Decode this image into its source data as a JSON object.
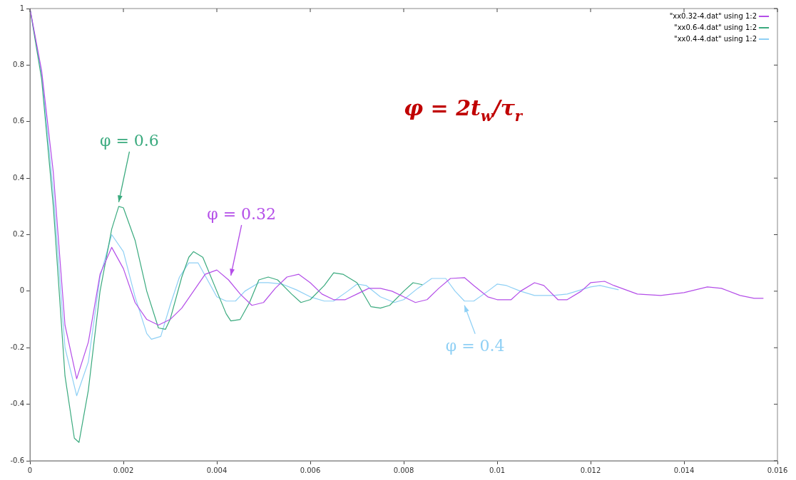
{
  "chart_data": {
    "type": "line",
    "xlim": [
      0,
      0.016
    ],
    "xticks": [
      0,
      0.002,
      0.004,
      0.006,
      0.008,
      0.01,
      0.012,
      0.014,
      0.016
    ],
    "ylim": [
      -0.6,
      1
    ],
    "yticks": [
      -0.6,
      -0.4,
      -0.2,
      0,
      0.2,
      0.4,
      0.6,
      0.8,
      1
    ],
    "grid": false,
    "legend": "top right",
    "marker": "none",
    "line_style": "solid",
    "series": [
      {
        "name": "\"xx0.32-4.dat\" using 1:2",
        "color": "#b44ee8",
        "x": [
          0,
          0.00025,
          0.0005,
          0.00075,
          0.001,
          0.00125,
          0.0015,
          0.00175,
          0.002,
          0.00225,
          0.0025,
          0.00275,
          0.003,
          0.00325,
          0.0035,
          0.00375,
          0.004,
          0.00425,
          0.0045,
          0.00475,
          0.005,
          0.00525,
          0.0055,
          0.00575,
          0.006,
          0.00625,
          0.0065,
          0.00675,
          0.007,
          0.00725,
          0.0075,
          0.00775,
          0.008,
          0.00825,
          0.0085,
          0.00875,
          0.009,
          0.0093,
          0.0095,
          0.0098,
          0.01,
          0.0103,
          0.0105,
          0.0108,
          0.011,
          0.0113,
          0.0115,
          0.0118,
          0.012,
          0.0123,
          0.0125,
          0.013,
          0.0135,
          0.014,
          0.0145,
          0.0148,
          0.0152,
          0.0155,
          0.0157
        ],
        "values": [
          1,
          0.78,
          0.42,
          -0.12,
          -0.31,
          -0.18,
          0.06,
          0.155,
          0.08,
          -0.04,
          -0.1,
          -0.12,
          -0.1,
          -0.06,
          0,
          0.06,
          0.075,
          0.04,
          -0.01,
          -0.05,
          -0.04,
          0.01,
          0.05,
          0.06,
          0.03,
          -0.01,
          -0.03,
          -0.03,
          -0.01,
          0.01,
          0.01,
          0,
          -0.02,
          -0.04,
          -0.03,
          0.01,
          0.045,
          0.048,
          0.02,
          -0.02,
          -0.03,
          -0.03,
          0,
          0.03,
          0.02,
          -0.03,
          -0.03,
          0,
          0.03,
          0.035,
          0.02,
          -0.01,
          -0.015,
          -0.005,
          0.015,
          0.01,
          -0.015,
          -0.025,
          -0.025
        ]
      },
      {
        "name": "\"xx0.6-4.dat\" using 1:2",
        "color": "#3aaa7e",
        "x": [
          0,
          0.00025,
          0.0005,
          0.00075,
          0.00095,
          0.00105,
          0.00125,
          0.0015,
          0.00175,
          0.0019,
          0.002,
          0.00225,
          0.0025,
          0.00275,
          0.0029,
          0.003,
          0.00325,
          0.0034,
          0.0035,
          0.0037,
          0.004,
          0.0042,
          0.0043,
          0.0045,
          0.0047,
          0.0049,
          0.0051,
          0.0053,
          0.0056,
          0.0058,
          0.006,
          0.0063,
          0.0065,
          0.0067,
          0.007,
          0.0073,
          0.0075,
          0.0077,
          0.008,
          0.0082,
          0.0084
        ],
        "values": [
          1,
          0.75,
          0.3,
          -0.3,
          -0.52,
          -0.535,
          -0.35,
          0,
          0.22,
          0.3,
          0.295,
          0.18,
          0,
          -0.13,
          -0.135,
          -0.1,
          0.05,
          0.12,
          0.14,
          0.12,
          0,
          -0.08,
          -0.105,
          -0.1,
          -0.04,
          0.04,
          0.05,
          0.04,
          -0.01,
          -0.04,
          -0.03,
          0.02,
          0.065,
          0.06,
          0.03,
          -0.055,
          -0.06,
          -0.05,
          0,
          0.03,
          0.023
        ]
      },
      {
        "name": "\"xx0.4-4.dat\" using 1:2",
        "color": "#8fd0f5",
        "x": [
          0,
          0.00025,
          0.0005,
          0.00075,
          0.001,
          0.00125,
          0.0015,
          0.00175,
          0.002,
          0.00225,
          0.0025,
          0.0026,
          0.0028,
          0.003,
          0.0032,
          0.0034,
          0.0036,
          0.0038,
          0.004,
          0.0042,
          0.0044,
          0.0046,
          0.0049,
          0.0051,
          0.0054,
          0.0057,
          0.006,
          0.0063,
          0.0065,
          0.0068,
          0.007,
          0.0072,
          0.0075,
          0.0078,
          0.008,
          0.0083,
          0.0086,
          0.0089,
          0.0091,
          0.0093,
          0.0095,
          0.0098,
          0.01,
          0.0102,
          0.0105,
          0.0108,
          0.0112,
          0.0115,
          0.0118,
          0.012,
          0.0122,
          0.0126
        ],
        "values": [
          1,
          0.77,
          0.35,
          -0.2,
          -0.37,
          -0.25,
          0.05,
          0.2,
          0.14,
          -0.02,
          -0.15,
          -0.17,
          -0.16,
          -0.05,
          0.05,
          0.1,
          0.1,
          0.04,
          -0.02,
          -0.035,
          -0.035,
          0,
          0.03,
          0.03,
          0.025,
          0.005,
          -0.02,
          -0.035,
          -0.035,
          0,
          0.025,
          0.02,
          -0.02,
          -0.04,
          -0.03,
          0.01,
          0.045,
          0.045,
          0,
          -0.035,
          -0.035,
          0,
          0.025,
          0.02,
          0,
          -0.015,
          -0.015,
          -0.01,
          0.005,
          0.015,
          0.02,
          0.005
        ]
      }
    ],
    "annotations": [
      {
        "text": "φ = 0.32",
        "x": 0.0043,
        "y": 0.04
      },
      {
        "text": "φ = 0.6",
        "x": 0.0019,
        "y": 0.3
      },
      {
        "text": "φ = 0.4",
        "x": 0.0093,
        "y": -0.035
      },
      "φ = 2t$_{w}$/τ$_{r}$"
    ]
  }
}
